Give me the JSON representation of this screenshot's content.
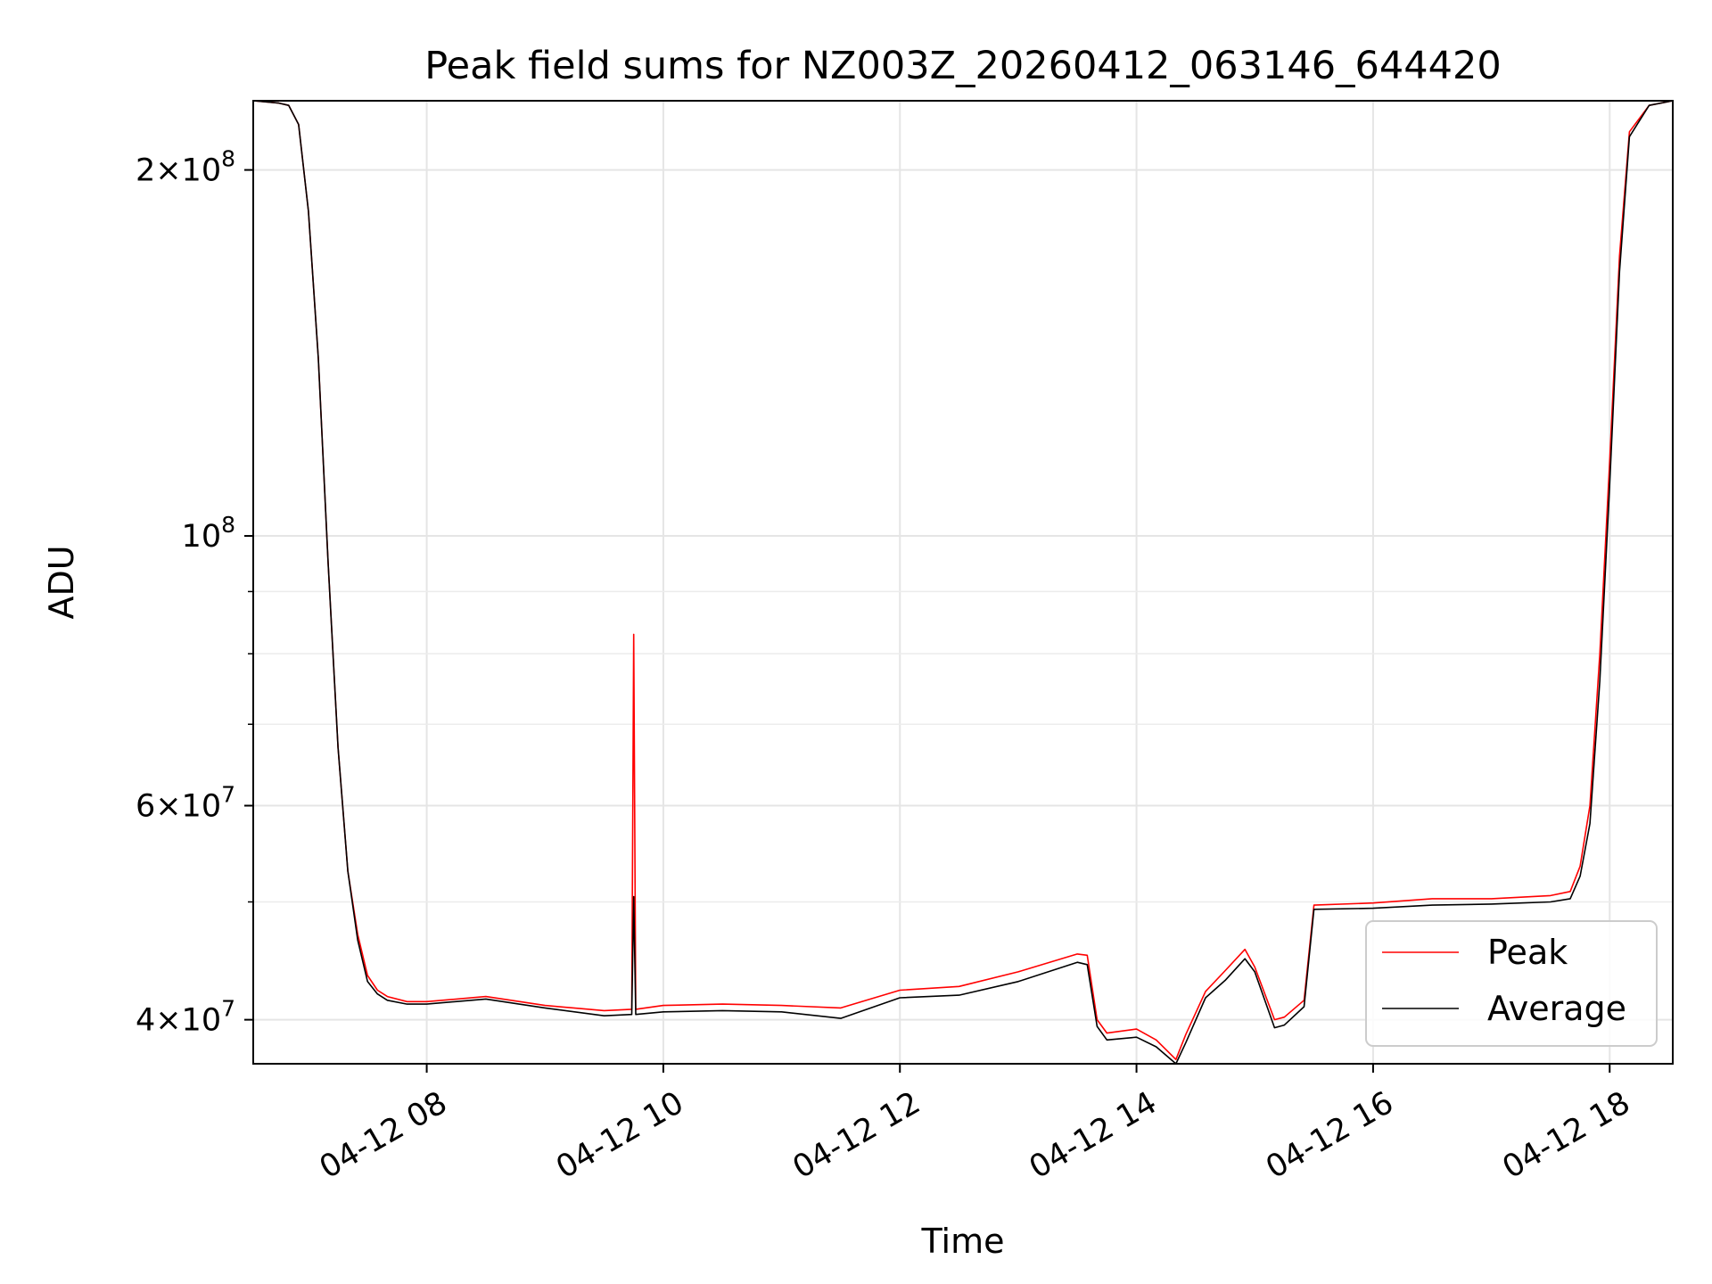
{
  "chart_data": {
    "type": "line",
    "title": "Peak field sums for NZ003Z_20260412_063146_644420",
    "xlabel": "Time",
    "ylabel": "ADU",
    "yscale": "log",
    "grid": true,
    "legend": "lower right",
    "xlim": [
      "2026-04-12 06:32",
      "2026-04-12 18:32"
    ],
    "ylim": [
      36800000,
      228000000
    ],
    "x_ticks": [
      {
        "value": "2026-04-12 08:00",
        "label": "04-12 08"
      },
      {
        "value": "2026-04-12 10:00",
        "label": "04-12 10"
      },
      {
        "value": "2026-04-12 12:00",
        "label": "04-12 12"
      },
      {
        "value": "2026-04-12 14:00",
        "label": "04-12 14"
      },
      {
        "value": "2026-04-12 16:00",
        "label": "04-12 16"
      },
      {
        "value": "2026-04-12 18:00",
        "label": "04-12 18"
      }
    ],
    "y_ticks": [
      {
        "value": 40000000,
        "mantissa": "4",
        "exp": "7"
      },
      {
        "value": 60000000,
        "mantissa": "6",
        "exp": "7"
      },
      {
        "value": 100000000,
        "mantissa": "",
        "exp": "8"
      },
      {
        "value": 200000000,
        "mantissa": "2",
        "exp": "8"
      }
    ],
    "y_minor_ticks": [
      50000000,
      70000000,
      80000000,
      90000000
    ],
    "series": [
      {
        "name": "Peak",
        "color": "#ff0000",
        "x": [
          "2026-04-12 06:32",
          "2026-04-12 06:45",
          "2026-04-12 06:50",
          "2026-04-12 06:55",
          "2026-04-12 07:00",
          "2026-04-12 07:05",
          "2026-04-12 07:10",
          "2026-04-12 07:15",
          "2026-04-12 07:20",
          "2026-04-12 07:25",
          "2026-04-12 07:30",
          "2026-04-12 07:35",
          "2026-04-12 07:40",
          "2026-04-12 07:50",
          "2026-04-12 08:00",
          "2026-04-12 08:30",
          "2026-04-12 09:00",
          "2026-04-12 09:30",
          "2026-04-12 09:44",
          "2026-04-12 09:45",
          "2026-04-12 09:46",
          "2026-04-12 10:00",
          "2026-04-12 10:30",
          "2026-04-12 11:00",
          "2026-04-12 11:30",
          "2026-04-12 12:00",
          "2026-04-12 12:30",
          "2026-04-12 13:00",
          "2026-04-12 13:30",
          "2026-04-12 13:35",
          "2026-04-12 13:40",
          "2026-04-12 13:45",
          "2026-04-12 14:00",
          "2026-04-12 14:10",
          "2026-04-12 14:20",
          "2026-04-12 14:25",
          "2026-04-12 14:35",
          "2026-04-12 14:45",
          "2026-04-12 14:55",
          "2026-04-12 15:00",
          "2026-04-12 15:10",
          "2026-04-12 15:15",
          "2026-04-12 15:25",
          "2026-04-12 15:30",
          "2026-04-12 16:00",
          "2026-04-12 16:30",
          "2026-04-12 17:00",
          "2026-04-12 17:30",
          "2026-04-12 17:40",
          "2026-04-12 17:45",
          "2026-04-12 17:50",
          "2026-04-12 17:55",
          "2026-04-12 18:00",
          "2026-04-12 18:05",
          "2026-04-12 18:10",
          "2026-04-12 18:20",
          "2026-04-12 18:32"
        ],
        "y": [
          228000000,
          227000000,
          226000000,
          218000000,
          185000000,
          140000000,
          95000000,
          67000000,
          53000000,
          47000000,
          43500000,
          42300000,
          41800000,
          41400000,
          41400000,
          41800000,
          41100000,
          40700000,
          40800000,
          83000000,
          40800000,
          41100000,
          41200000,
          41100000,
          40900000,
          42300000,
          42600000,
          43800000,
          45300000,
          45200000,
          40000000,
          39000000,
          39300000,
          38500000,
          37100000,
          38900000,
          42200000,
          43900000,
          45700000,
          44200000,
          40000000,
          40200000,
          41500000,
          49700000,
          49900000,
          50300000,
          50300000,
          50600000,
          51000000,
          53500000,
          60000000,
          80000000,
          115000000,
          170000000,
          215000000,
          226000000,
          228000000
        ]
      },
      {
        "name": "Average",
        "color": "#000000",
        "x": [
          "2026-04-12 06:32",
          "2026-04-12 06:45",
          "2026-04-12 06:50",
          "2026-04-12 06:55",
          "2026-04-12 07:00",
          "2026-04-12 07:05",
          "2026-04-12 07:10",
          "2026-04-12 07:15",
          "2026-04-12 07:20",
          "2026-04-12 07:25",
          "2026-04-12 07:30",
          "2026-04-12 07:35",
          "2026-04-12 07:40",
          "2026-04-12 07:50",
          "2026-04-12 08:00",
          "2026-04-12 08:30",
          "2026-04-12 09:00",
          "2026-04-12 09:30",
          "2026-04-12 09:44",
          "2026-04-12 09:45",
          "2026-04-12 09:46",
          "2026-04-12 10:00",
          "2026-04-12 10:30",
          "2026-04-12 11:00",
          "2026-04-12 11:30",
          "2026-04-12 12:00",
          "2026-04-12 12:30",
          "2026-04-12 13:00",
          "2026-04-12 13:30",
          "2026-04-12 13:35",
          "2026-04-12 13:40",
          "2026-04-12 13:45",
          "2026-04-12 14:00",
          "2026-04-12 14:10",
          "2026-04-12 14:20",
          "2026-04-12 14:25",
          "2026-04-12 14:35",
          "2026-04-12 14:45",
          "2026-04-12 14:55",
          "2026-04-12 15:00",
          "2026-04-12 15:10",
          "2026-04-12 15:15",
          "2026-04-12 15:25",
          "2026-04-12 15:30",
          "2026-04-12 16:00",
          "2026-04-12 16:30",
          "2026-04-12 17:00",
          "2026-04-12 17:30",
          "2026-04-12 17:40",
          "2026-04-12 17:45",
          "2026-04-12 17:50",
          "2026-04-12 17:55",
          "2026-04-12 18:00",
          "2026-04-12 18:05",
          "2026-04-12 18:10",
          "2026-04-12 18:20",
          "2026-04-12 18:32"
        ],
        "y": [
          228000000,
          227000000,
          226000000,
          218000000,
          185000000,
          140000000,
          95000000,
          67000000,
          53000000,
          46500000,
          43000000,
          42000000,
          41500000,
          41200000,
          41200000,
          41600000,
          40900000,
          40300000,
          40400000,
          50500000,
          40400000,
          40600000,
          40700000,
          40600000,
          40100000,
          41700000,
          41900000,
          43000000,
          44600000,
          44400000,
          39500000,
          38500000,
          38700000,
          38000000,
          36800000,
          38300000,
          41700000,
          43100000,
          44900000,
          43800000,
          39400000,
          39600000,
          41000000,
          49300000,
          49400000,
          49700000,
          49800000,
          50000000,
          50300000,
          52500000,
          58000000,
          76000000,
          110000000,
          165000000,
          213000000,
          226000000,
          228000000
        ]
      }
    ]
  }
}
